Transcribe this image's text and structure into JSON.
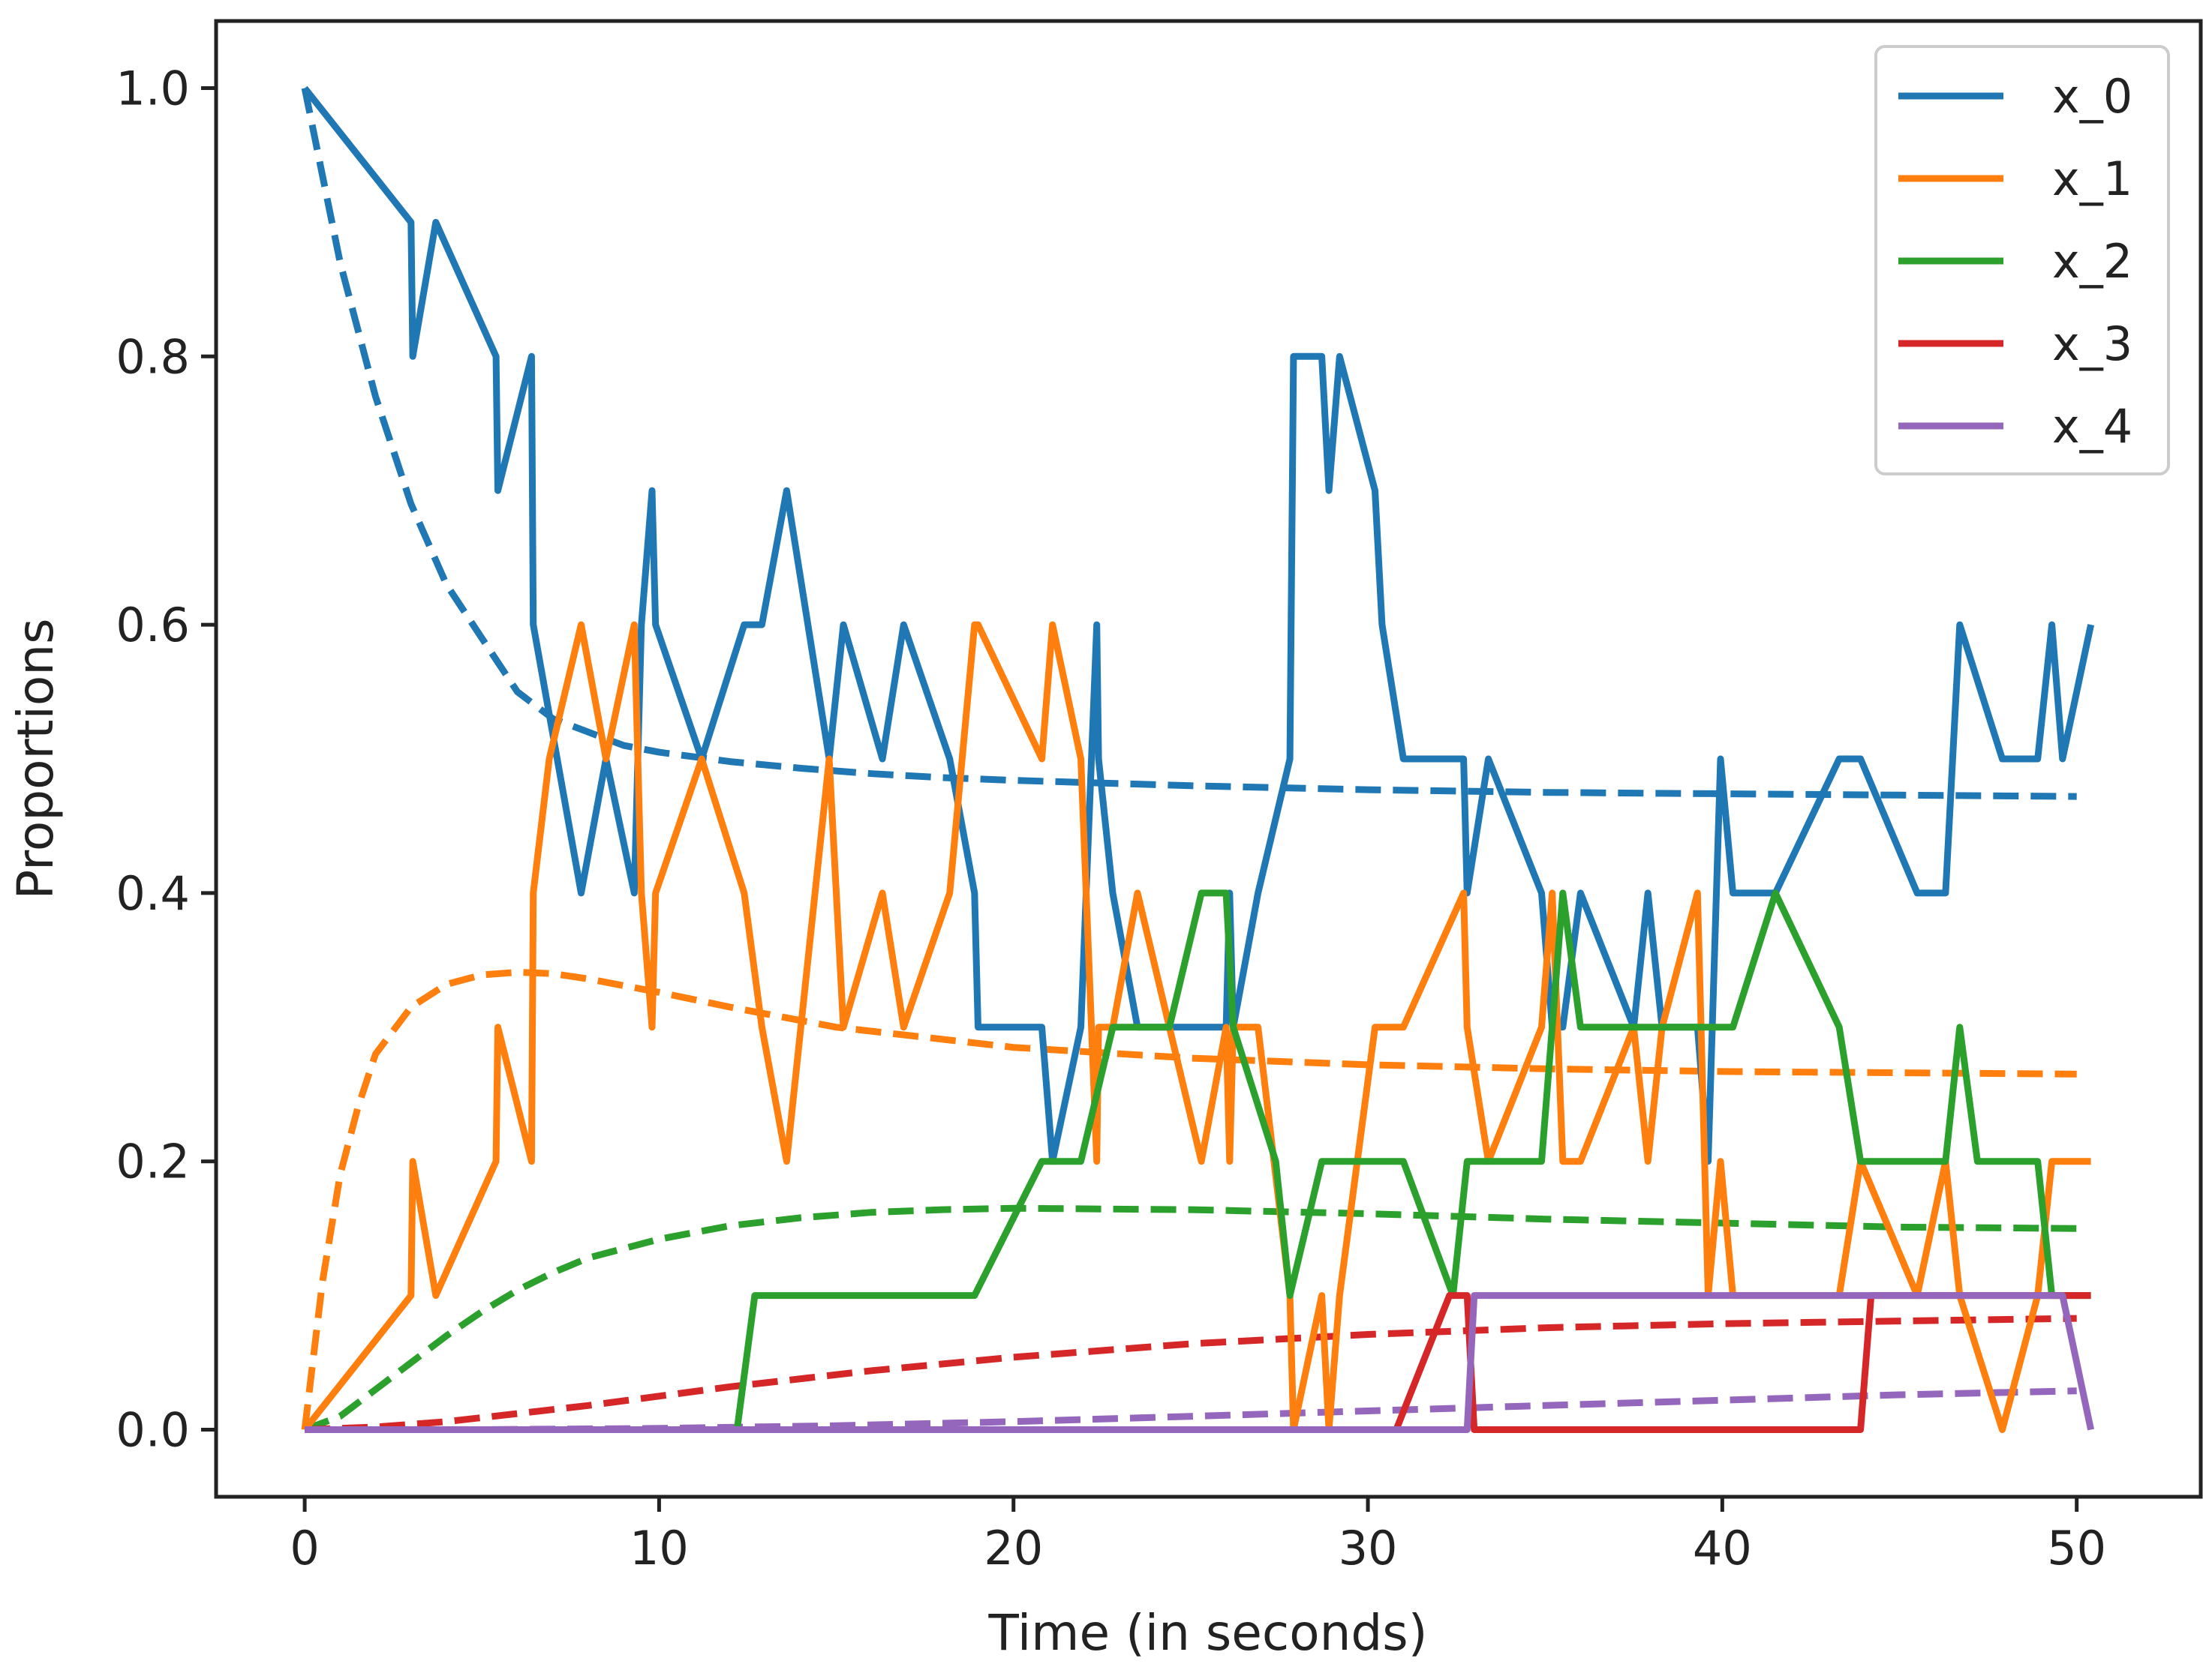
{
  "chart_data": {
    "type": "line",
    "title": "",
    "xlabel": "Time (in seconds)",
    "ylabel": "Proportions",
    "xlim": [
      -2.5,
      53.5
    ],
    "ylim": [
      -0.05,
      1.05
    ],
    "xticks": [
      0,
      10,
      20,
      30,
      40,
      50
    ],
    "xtick_labels": [
      "0",
      "10",
      "20",
      "30",
      "40",
      "50"
    ],
    "yticks": [
      0.0,
      0.2,
      0.4,
      0.6,
      0.8,
      1.0
    ],
    "ytick_labels": [
      "0.0",
      "0.2",
      "0.4",
      "0.6",
      "0.8",
      "1.0"
    ],
    "grid": false,
    "legend_position": "top-right",
    "colors": [
      "#1f77b4",
      "#ff7f0e",
      "#2ca02c",
      "#d62728",
      "#9467bd"
    ],
    "series": [
      {
        "name": "x_0",
        "color": "#1f77b4",
        "style": "solid",
        "x": [
          0,
          3.0,
          3.05,
          3.7,
          5.4,
          5.45,
          6.4,
          6.45,
          7.8,
          8.5,
          9.3,
          9.5,
          9.8,
          9.9,
          11.2,
          12.4,
          12.9,
          13.6,
          14.8,
          15.2,
          16.3,
          16.9,
          18.2,
          18.9,
          19.0,
          20.8,
          21.1,
          21.9,
          22.35,
          22.4,
          22.8,
          23.5,
          24.4,
          25.3,
          26.0,
          26.1,
          26.2,
          26.9,
          27.8,
          27.9,
          28.7,
          28.9,
          29.2,
          30.2,
          30.4,
          31.0,
          32.7,
          32.8,
          33.4,
          34.9,
          35.2,
          35.5,
          36.0,
          37.5,
          37.9,
          38.3,
          39.3,
          39.6,
          39.95,
          40.3,
          41.5,
          43.3,
          43.9,
          45.5,
          46.3,
          46.7,
          47.9,
          48.9,
          49.3,
          49.6,
          50.4
        ],
        "y": [
          1.0,
          0.9,
          0.8,
          0.9,
          0.8,
          0.7,
          0.8,
          0.6,
          0.4,
          0.5,
          0.4,
          0.6,
          0.7,
          0.6,
          0.5,
          0.6,
          0.6,
          0.7,
          0.5,
          0.6,
          0.5,
          0.6,
          0.5,
          0.4,
          0.3,
          0.3,
          0.2,
          0.3,
          0.6,
          0.5,
          0.4,
          0.3,
          0.3,
          0.3,
          0.3,
          0.4,
          0.3,
          0.4,
          0.5,
          0.8,
          0.8,
          0.7,
          0.8,
          0.7,
          0.6,
          0.5,
          0.5,
          0.4,
          0.5,
          0.4,
          0.3,
          0.3,
          0.4,
          0.3,
          0.4,
          0.3,
          0.3,
          0.2,
          0.5,
          0.4,
          0.4,
          0.5,
          0.5,
          0.4,
          0.4,
          0.6,
          0.5,
          0.5,
          0.6,
          0.5,
          0.6
        ]
      },
      {
        "name": "x_1",
        "color": "#ff7f0e",
        "style": "solid",
        "x": [
          0,
          3.0,
          3.05,
          3.7,
          5.4,
          5.45,
          6.4,
          6.45,
          6.9,
          7.8,
          8.5,
          9.3,
          9.5,
          9.8,
          9.9,
          11.2,
          12.4,
          12.9,
          13.6,
          14.8,
          15.2,
          16.3,
          16.9,
          18.2,
          18.9,
          19.0,
          20.8,
          21.1,
          21.9,
          22.35,
          22.4,
          22.8,
          23.5,
          24.4,
          25.3,
          26.0,
          26.1,
          26.2,
          26.9,
          27.8,
          27.9,
          28.7,
          28.9,
          29.2,
          30.2,
          30.4,
          31.0,
          32.7,
          32.8,
          33.4,
          34.9,
          35.2,
          35.5,
          36.0,
          37.5,
          37.9,
          38.3,
          39.3,
          39.6,
          39.95,
          40.3,
          41.5,
          43.3,
          43.9,
          45.5,
          46.3,
          46.7,
          47.9,
          48.9,
          49.3,
          49.6,
          50.4
        ],
        "y": [
          0.0,
          0.1,
          0.2,
          0.1,
          0.2,
          0.3,
          0.2,
          0.4,
          0.5,
          0.6,
          0.5,
          0.6,
          0.4,
          0.3,
          0.4,
          0.5,
          0.4,
          0.3,
          0.2,
          0.5,
          0.3,
          0.4,
          0.3,
          0.4,
          0.6,
          0.6,
          0.5,
          0.6,
          0.5,
          0.2,
          0.3,
          0.3,
          0.4,
          0.3,
          0.2,
          0.3,
          0.2,
          0.3,
          0.3,
          0.1,
          0.0,
          0.1,
          0.0,
          0.1,
          0.3,
          0.3,
          0.3,
          0.4,
          0.3,
          0.2,
          0.3,
          0.4,
          0.2,
          0.2,
          0.3,
          0.2,
          0.3,
          0.4,
          0.1,
          0.2,
          0.1,
          0.1,
          0.1,
          0.2,
          0.1,
          0.2,
          0.1,
          0.0,
          0.1,
          0.2,
          0.2,
          0.2
        ]
      },
      {
        "name": "x_2",
        "color": "#2ca02c",
        "style": "solid",
        "x": [
          0,
          12.2,
          12.7,
          18.9,
          20.8,
          21.9,
          22.8,
          24.4,
          25.3,
          26.0,
          26.2,
          27.4,
          27.8,
          28.7,
          29.2,
          30.2,
          31.0,
          32.4,
          32.8,
          34.9,
          35.5,
          36.0,
          37.5,
          38.3,
          39.3,
          40.3,
          41.5,
          43.3,
          43.9,
          46.3,
          46.7,
          47.2,
          48.9,
          49.3,
          49.6,
          50.4
        ],
        "y": [
          0.0,
          0.0,
          0.1,
          0.1,
          0.2,
          0.2,
          0.3,
          0.3,
          0.4,
          0.4,
          0.3,
          0.2,
          0.1,
          0.2,
          0.2,
          0.2,
          0.2,
          0.1,
          0.2,
          0.2,
          0.4,
          0.3,
          0.3,
          0.3,
          0.3,
          0.3,
          0.4,
          0.3,
          0.2,
          0.2,
          0.3,
          0.2,
          0.2,
          0.1,
          0.1,
          0.1
        ]
      },
      {
        "name": "x_3",
        "color": "#d62728",
        "style": "solid",
        "x": [
          0,
          30.8,
          32.3,
          32.8,
          33.0,
          43.9,
          44.2,
          50.4
        ],
        "y": [
          0.0,
          0.0,
          0.1,
          0.1,
          0.0,
          0.0,
          0.1,
          0.1
        ]
      },
      {
        "name": "x_4",
        "color": "#9467bd",
        "style": "solid",
        "x": [
          0,
          32.8,
          33.0,
          49.6,
          50.4
        ],
        "y": [
          0.0,
          0.0,
          0.1,
          0.1,
          0.0
        ]
      },
      {
        "color": "#1f77b4",
        "style": "dashed",
        "x": [
          0,
          1,
          2,
          3,
          4,
          5,
          6,
          7,
          8,
          9,
          10,
          12,
          14,
          16,
          18,
          20,
          25,
          30,
          35,
          40,
          45,
          50
        ],
        "y": [
          1.0,
          0.87,
          0.77,
          0.69,
          0.63,
          0.59,
          0.55,
          0.53,
          0.52,
          0.51,
          0.505,
          0.498,
          0.493,
          0.489,
          0.486,
          0.484,
          0.48,
          0.477,
          0.475,
          0.474,
          0.473,
          0.472
        ]
      },
      {
        "color": "#ff7f0e",
        "style": "dashed",
        "x": [
          0,
          0.5,
          1,
          1.5,
          2,
          3,
          4,
          5,
          6,
          7,
          8,
          10,
          12,
          15,
          20,
          25,
          30,
          35,
          40,
          45,
          50
        ],
        "y": [
          0.0,
          0.11,
          0.19,
          0.24,
          0.28,
          0.315,
          0.332,
          0.339,
          0.341,
          0.34,
          0.336,
          0.326,
          0.315,
          0.3,
          0.285,
          0.277,
          0.272,
          0.269,
          0.267,
          0.266,
          0.265
        ]
      },
      {
        "color": "#2ca02c",
        "style": "dashed",
        "x": [
          0,
          1,
          2,
          3,
          4,
          5,
          6,
          7,
          8,
          10,
          12,
          14,
          16,
          18,
          20,
          25,
          30,
          35,
          40,
          45,
          50
        ],
        "y": [
          0.0,
          0.01,
          0.03,
          0.05,
          0.07,
          0.088,
          0.104,
          0.117,
          0.128,
          0.142,
          0.152,
          0.158,
          0.162,
          0.164,
          0.165,
          0.164,
          0.161,
          0.157,
          0.154,
          0.151,
          0.15
        ]
      },
      {
        "color": "#d62728",
        "style": "dashed",
        "x": [
          0,
          2,
          4,
          6,
          8,
          10,
          12,
          14,
          16,
          18,
          20,
          25,
          30,
          35,
          40,
          45,
          50
        ],
        "y": [
          0.0,
          0.002,
          0.006,
          0.012,
          0.018,
          0.025,
          0.032,
          0.038,
          0.044,
          0.049,
          0.054,
          0.064,
          0.071,
          0.076,
          0.079,
          0.081,
          0.083
        ]
      },
      {
        "color": "#9467bd",
        "style": "dashed",
        "x": [
          0,
          5,
          10,
          15,
          20,
          25,
          30,
          35,
          40,
          45,
          50
        ],
        "y": [
          0.0,
          0.0,
          0.001,
          0.003,
          0.006,
          0.01,
          0.014,
          0.018,
          0.022,
          0.026,
          0.029
        ]
      }
    ]
  }
}
